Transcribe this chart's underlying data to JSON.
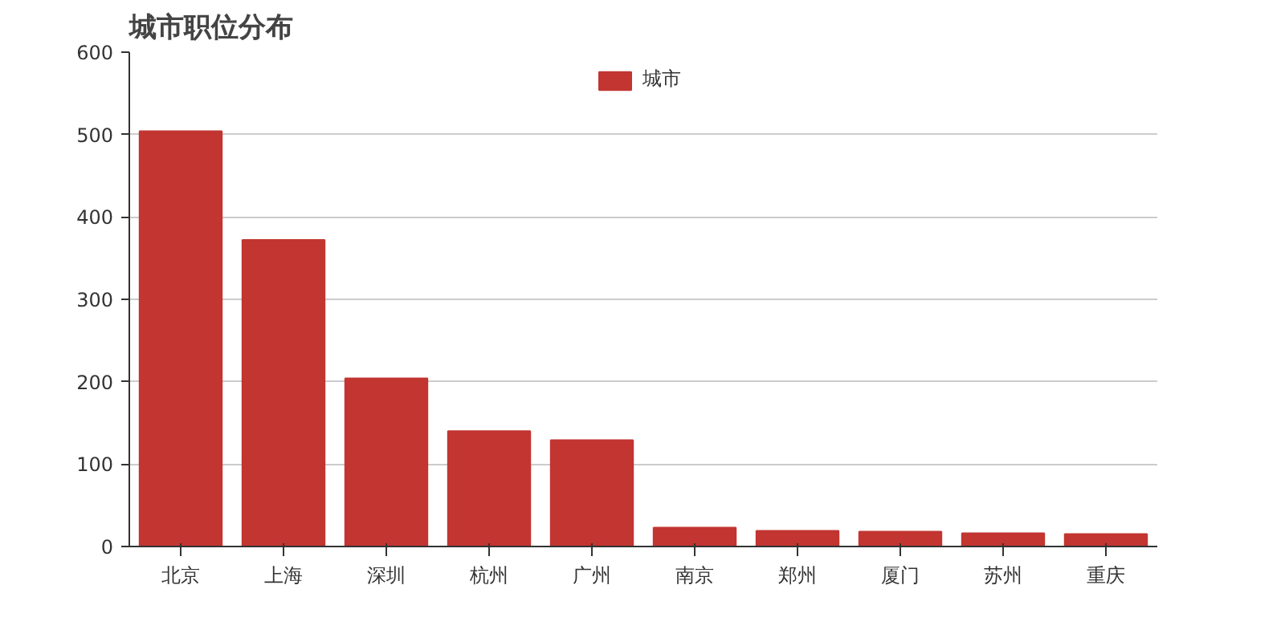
{
  "chart_data": {
    "type": "bar",
    "title": "城市职位分布",
    "categories": [
      "北京",
      "上海",
      "深圳",
      "杭州",
      "广州",
      "南京",
      "郑州",
      "厦门",
      "苏州",
      "重庆"
    ],
    "series": [
      {
        "name": "城市",
        "color": "#c23531",
        "values": [
          504,
          372,
          204,
          140,
          129,
          23,
          19,
          18,
          16,
          15
        ]
      }
    ],
    "ylim": [
      0,
      600
    ],
    "yticks": [
      0,
      100,
      200,
      300,
      400,
      500,
      600
    ],
    "grid": "y",
    "legend": "top"
  }
}
